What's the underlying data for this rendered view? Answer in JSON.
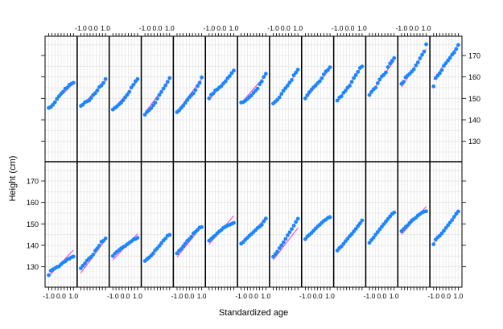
{
  "chart_data": {
    "type": "scatter",
    "xlabel": "Standardized age",
    "ylabel": "Height (cm)",
    "xlim": [
      -1.3,
      1.3
    ],
    "ylim": [
      120.5,
      179
    ],
    "x_tick_labels": [
      "-1.0",
      "0.0",
      "1.0"
    ],
    "x_tick_values": [
      -1,
      0,
      1
    ],
    "y_tick_values": [
      130,
      140,
      150,
      160,
      170
    ],
    "grid": true,
    "layout": {
      "rows": 2,
      "cols": 13
    },
    "colors": {
      "points": "#1a86ff",
      "fit_line": "#ff33cc",
      "grid": "#e6e6e6",
      "frame": "#000000"
    },
    "x": [
      -1.0,
      -0.83,
      -0.67,
      -0.5,
      -0.33,
      -0.17,
      0.0,
      0.17,
      0.33,
      0.5,
      0.67,
      0.83,
      1.0
    ],
    "panels": [
      {
        "row": "top",
        "col": 1,
        "fit": [
          145.8,
          156.9
        ],
        "y": [
          145.6,
          146.0,
          147.0,
          148.2,
          149.8,
          151.0,
          152.2,
          153.1,
          154.5,
          155.0,
          156.3,
          156.8,
          157.3
        ]
      },
      {
        "row": "top",
        "col": 2,
        "fit": [
          146.3,
          158.2
        ],
        "y": [
          146.5,
          147.1,
          148.2,
          148.6,
          149.0,
          150.2,
          151.6,
          152.4,
          153.7,
          155.3,
          156.0,
          157.2,
          159.0
        ]
      },
      {
        "row": "top",
        "col": 3,
        "fit": [
          144.7,
          158.1
        ],
        "y": [
          144.8,
          145.6,
          146.3,
          147.2,
          148.0,
          149.1,
          150.5,
          151.7,
          153.0,
          155.1,
          156.4,
          158.0,
          159.0
        ]
      },
      {
        "row": "top",
        "col": 4,
        "fit": [
          143.3,
          158.8
        ],
        "y": [
          142.4,
          143.7,
          144.5,
          145.4,
          146.8,
          148.0,
          149.9,
          151.6,
          153.0,
          154.6,
          156.1,
          157.7,
          159.5
        ]
      },
      {
        "row": "top",
        "col": 5,
        "fit": [
          143.8,
          159.1
        ],
        "y": [
          143.6,
          144.4,
          145.5,
          146.6,
          147.9,
          149.2,
          150.5,
          151.5,
          152.4,
          153.9,
          155.8,
          157.3,
          159.8
        ]
      },
      {
        "row": "top",
        "col": 6,
        "fit": [
          149.2,
          163.2
        ],
        "y": [
          150.0,
          151.7,
          152.3,
          153.7,
          154.2,
          155.1,
          155.8,
          157.0,
          158.0,
          159.4,
          160.4,
          161.8,
          163.0
        ]
      },
      {
        "row": "top",
        "col": 7,
        "fit": [
          147.8,
          161.0
        ],
        "y": [
          148.1,
          148.3,
          148.9,
          149.7,
          150.6,
          151.4,
          152.6,
          153.6,
          154.6,
          156.6,
          157.9,
          160.0,
          161.5
        ]
      },
      {
        "row": "top",
        "col": 8,
        "fit": [
          146.8,
          162.7
        ],
        "y": [
          147.6,
          148.5,
          149.3,
          150.5,
          152.1,
          153.6,
          154.8,
          156.0,
          157.4,
          158.6,
          160.8,
          162.0,
          163.4
        ]
      },
      {
        "row": "top",
        "col": 9,
        "fit": [
          149.5,
          163.8
        ],
        "y": [
          150.0,
          151.5,
          152.9,
          154.1,
          155.2,
          156.0,
          157.1,
          158.0,
          159.4,
          161.2,
          162.6,
          163.2,
          164.5
        ]
      },
      {
        "row": "top",
        "col": 10,
        "fit": [
          148.8,
          164.8
        ],
        "y": [
          149.0,
          150.4,
          151.0,
          152.6,
          153.6,
          155.0,
          155.9,
          157.7,
          159.5,
          160.9,
          162.4,
          164.2,
          164.9
        ]
      },
      {
        "row": "top",
        "col": 11,
        "fit": [
          151.5,
          167.5
        ],
        "y": [
          151.6,
          153.0,
          154.2,
          155.0,
          157.1,
          158.8,
          160.3,
          161.0,
          162.1,
          164.6,
          166.3,
          167.5,
          168.8
        ]
      },
      {
        "row": "top",
        "col": 12,
        "fit": [
          155.2,
          173.0
        ],
        "y": [
          156.8,
          157.7,
          159.8,
          160.7,
          161.5,
          162.5,
          163.6,
          165.4,
          166.8,
          168.7,
          170.3,
          171.8,
          175.2
        ]
      },
      {
        "row": "top",
        "col": 13,
        "fit": [
          158.8,
          175.2
        ],
        "y": [
          155.6,
          159.5,
          160.6,
          161.7,
          163.2,
          165.2,
          166.4,
          167.7,
          168.9,
          170.4,
          171.4,
          173.0,
          174.9
        ]
      },
      {
        "row": "bottom",
        "col": 1,
        "fit": [
          125.6,
          137.8
        ],
        "y": [
          126.1,
          128.2,
          128.8,
          129.3,
          129.9,
          130.2,
          131.2,
          132.0,
          132.5,
          133.4,
          133.8,
          134.4,
          134.8
        ]
      },
      {
        "row": "bottom",
        "col": 2,
        "fit": [
          127.1,
          142.6
        ],
        "y": [
          129.3,
          130.5,
          131.6,
          132.9,
          133.9,
          134.6,
          135.7,
          137.5,
          138.6,
          139.9,
          141.7,
          142.1,
          143.2
        ]
      },
      {
        "row": "bottom",
        "col": 3,
        "fit": [
          133.2,
          145.4
        ],
        "y": [
          135.0,
          136.2,
          137.0,
          137.8,
          138.6,
          139.2,
          139.7,
          140.5,
          141.2,
          141.9,
          142.7,
          143.0,
          143.5
        ]
      },
      {
        "row": "bottom",
        "col": 4,
        "fit": [
          132.8,
          145.5
        ],
        "y": [
          132.7,
          133.6,
          134.3,
          135.2,
          136.2,
          137.7,
          138.6,
          139.8,
          141.0,
          142.3,
          143.2,
          144.5,
          144.9
        ]
      },
      {
        "row": "bottom",
        "col": 5,
        "fit": [
          134.5,
          148.9
        ],
        "y": [
          136.3,
          137.5,
          138.3,
          139.6,
          140.8,
          142.1,
          142.9,
          144.0,
          145.6,
          146.3,
          147.2,
          148.3,
          148.5
        ]
      },
      {
        "row": "bottom",
        "col": 6,
        "fit": [
          140.5,
          153.8
        ],
        "y": [
          142.2,
          143.0,
          143.9,
          144.6,
          145.7,
          146.5,
          147.2,
          148.2,
          148.7,
          149.2,
          149.6,
          150.0,
          150.5
        ]
      },
      {
        "row": "bottom",
        "col": 7,
        "fit": [
          140.0,
          153.0
        ],
        "y": [
          140.8,
          141.5,
          142.6,
          143.5,
          144.5,
          145.3,
          146.2,
          147.1,
          148.1,
          148.7,
          149.6,
          151.2,
          152.5
        ]
      },
      {
        "row": "bottom",
        "col": 8,
        "fit": [
          133.2,
          148.1
        ],
        "y": [
          134.7,
          135.9,
          137.0,
          138.7,
          140.0,
          141.4,
          143.0,
          144.7,
          146.1,
          147.6,
          149.2,
          150.9,
          152.4
        ]
      },
      {
        "row": "bottom",
        "col": 9,
        "fit": [
          142.3,
          154.1
        ],
        "y": [
          142.9,
          144.2,
          144.9,
          145.8,
          146.8,
          147.8,
          148.8,
          149.6,
          150.5,
          151.4,
          152.0,
          152.8,
          153.1
        ]
      },
      {
        "row": "bottom",
        "col": 10,
        "fit": [
          136.7,
          150.6
        ],
        "y": [
          137.6,
          138.8,
          139.5,
          140.7,
          142.0,
          143.1,
          144.3,
          145.3,
          146.5,
          147.7,
          149.0,
          150.2,
          151.6
        ]
      },
      {
        "row": "bottom",
        "col": 11,
        "fit": [
          140.8,
          155.1
        ],
        "y": [
          141.2,
          142.5,
          143.6,
          145.0,
          146.2,
          147.5,
          148.7,
          149.9,
          151.1,
          152.3,
          153.5,
          154.6,
          155.3
        ]
      },
      {
        "row": "bottom",
        "col": 12,
        "fit": [
          145.1,
          158.1
        ],
        "y": [
          146.6,
          147.6,
          148.5,
          149.4,
          150.5,
          151.6,
          152.2,
          152.9,
          153.9,
          154.6,
          155.3,
          155.7,
          155.9
        ]
      },
      {
        "row": "bottom",
        "col": 13,
        "fit": [
          140.9,
          155.7
        ],
        "y": [
          140.5,
          142.7,
          143.7,
          144.5,
          145.6,
          146.8,
          148.1,
          149.4,
          150.6,
          151.8,
          153.3,
          154.7,
          155.8
        ]
      }
    ]
  }
}
